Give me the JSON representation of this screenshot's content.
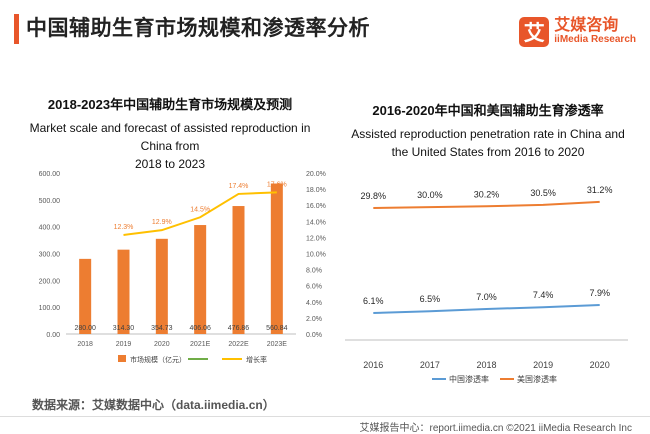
{
  "header": {
    "title": "中国辅助生育市场规模和渗透率分析"
  },
  "logo": {
    "mark": "艾",
    "name_cn": "艾媒咨询",
    "name_en": "iiMedia Research"
  },
  "chart_data": [
    {
      "type": "bar+line",
      "title_cn": "2018-2023年中国辅助生育市场规模及预测",
      "title_en_line1": "Market scale and forecast of assisted reproduction in China from",
      "title_en_line2": "2018 to 2023",
      "categories": [
        "2018",
        "2019",
        "2020",
        "2021E",
        "2022E",
        "2023E"
      ],
      "bar_series": {
        "name": "市场规模（亿元）",
        "values": [
          280.0,
          314.3,
          354.73,
          406.06,
          476.86,
          560.84
        ],
        "labels": [
          "280.00",
          "314.30",
          "354.73",
          "406.06",
          "476.86",
          "560.84"
        ]
      },
      "line_series": {
        "name": "增长率",
        "values": [
          12.3,
          12.9,
          14.5,
          17.4,
          17.6
        ],
        "labels": [
          "12.3%",
          "12.9%",
          "14.5%",
          "17.4%",
          "17.6%"
        ],
        "start_index": 1
      },
      "y_left_ticks": [
        "600.00",
        "500.00",
        "400.00",
        "300.00",
        "200.00",
        "100.00",
        "0.00"
      ],
      "y_right_ticks": [
        "20.0%",
        "18.0%",
        "16.0%",
        "14.0%",
        "12.0%",
        "10.0%",
        "8.0%",
        "6.0%",
        "4.0%",
        "2.0%",
        "0.0%"
      ],
      "ylim_left": [
        0,
        600
      ],
      "ylim_right": [
        0,
        20
      ],
      "legend_third": "",
      "colors": {
        "bar": "#ed7d31",
        "line": "#ffc000",
        "legend_green": "#70ad47"
      }
    },
    {
      "type": "line",
      "title_cn": "2016-2020年中国和美国辅助生育渗透率",
      "title_en_line1": "Assisted reproduction penetration rate in China and",
      "title_en_line2": "the United States from 2016 to 2020",
      "x": [
        "2016",
        "2017",
        "2018",
        "2019",
        "2020"
      ],
      "series": [
        {
          "name": "中国渗透率",
          "values": [
            6.1,
            6.5,
            7.0,
            7.4,
            7.9
          ],
          "labels": [
            "6.1%",
            "6.5%",
            "7.0%",
            "7.4%",
            "7.9%"
          ],
          "color": "#5b9bd5"
        },
        {
          "name": "美国渗透率",
          "values": [
            29.8,
            30.0,
            30.2,
            30.5,
            31.2
          ],
          "labels": [
            "29.8%",
            "30.0%",
            "30.2%",
            "30.5%",
            "31.2%"
          ],
          "color": "#ed7d31"
        }
      ],
      "ylim": [
        0,
        35
      ]
    }
  ],
  "source": "数据来源：艾媒数据中心（data.iimedia.cn）",
  "footer": "艾媒报告中心：report.iimedia.cn  ©2021  iiMedia Research  Inc"
}
